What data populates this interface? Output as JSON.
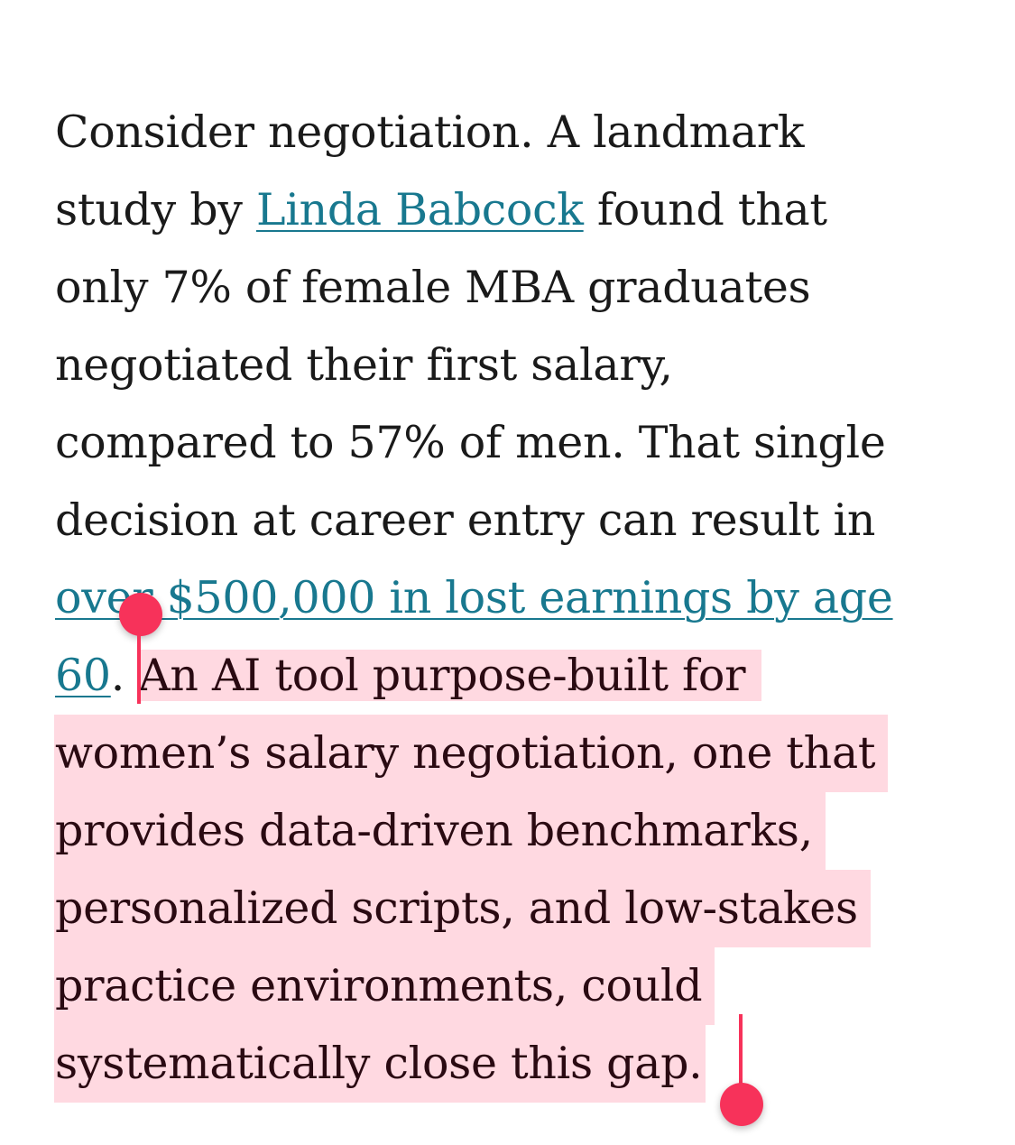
{
  "paragraph": {
    "line1": "Consider negotiation. A landmark",
    "line2_before": "study by ",
    "line2_link": "Linda Babcock",
    "line2_after": " found that",
    "line3": "only 7% of female MBA graduates",
    "line4": "negotiated their first salary,",
    "line5": "compared to 57% of men. That single",
    "line6": "decision at career entry can result in",
    "line7_link": "over $500,000 in lost earnings by age",
    "line8_link": "60",
    "line8_punct": ". ",
    "line8_selected": "An AI tool purpose-built for",
    "line9": "women’s salary negotiation, one that",
    "line10": "provides data-driven benchmarks,",
    "line11": "personalized scripts, and low-stakes",
    "line12": "practice environments, could",
    "line13": "systematically close this gap."
  },
  "selection": {
    "highlight_color": "#ffd9e1",
    "handle_color": "#f7325a"
  },
  "colors": {
    "link": "#18788f",
    "text": "#1a1a1a"
  }
}
